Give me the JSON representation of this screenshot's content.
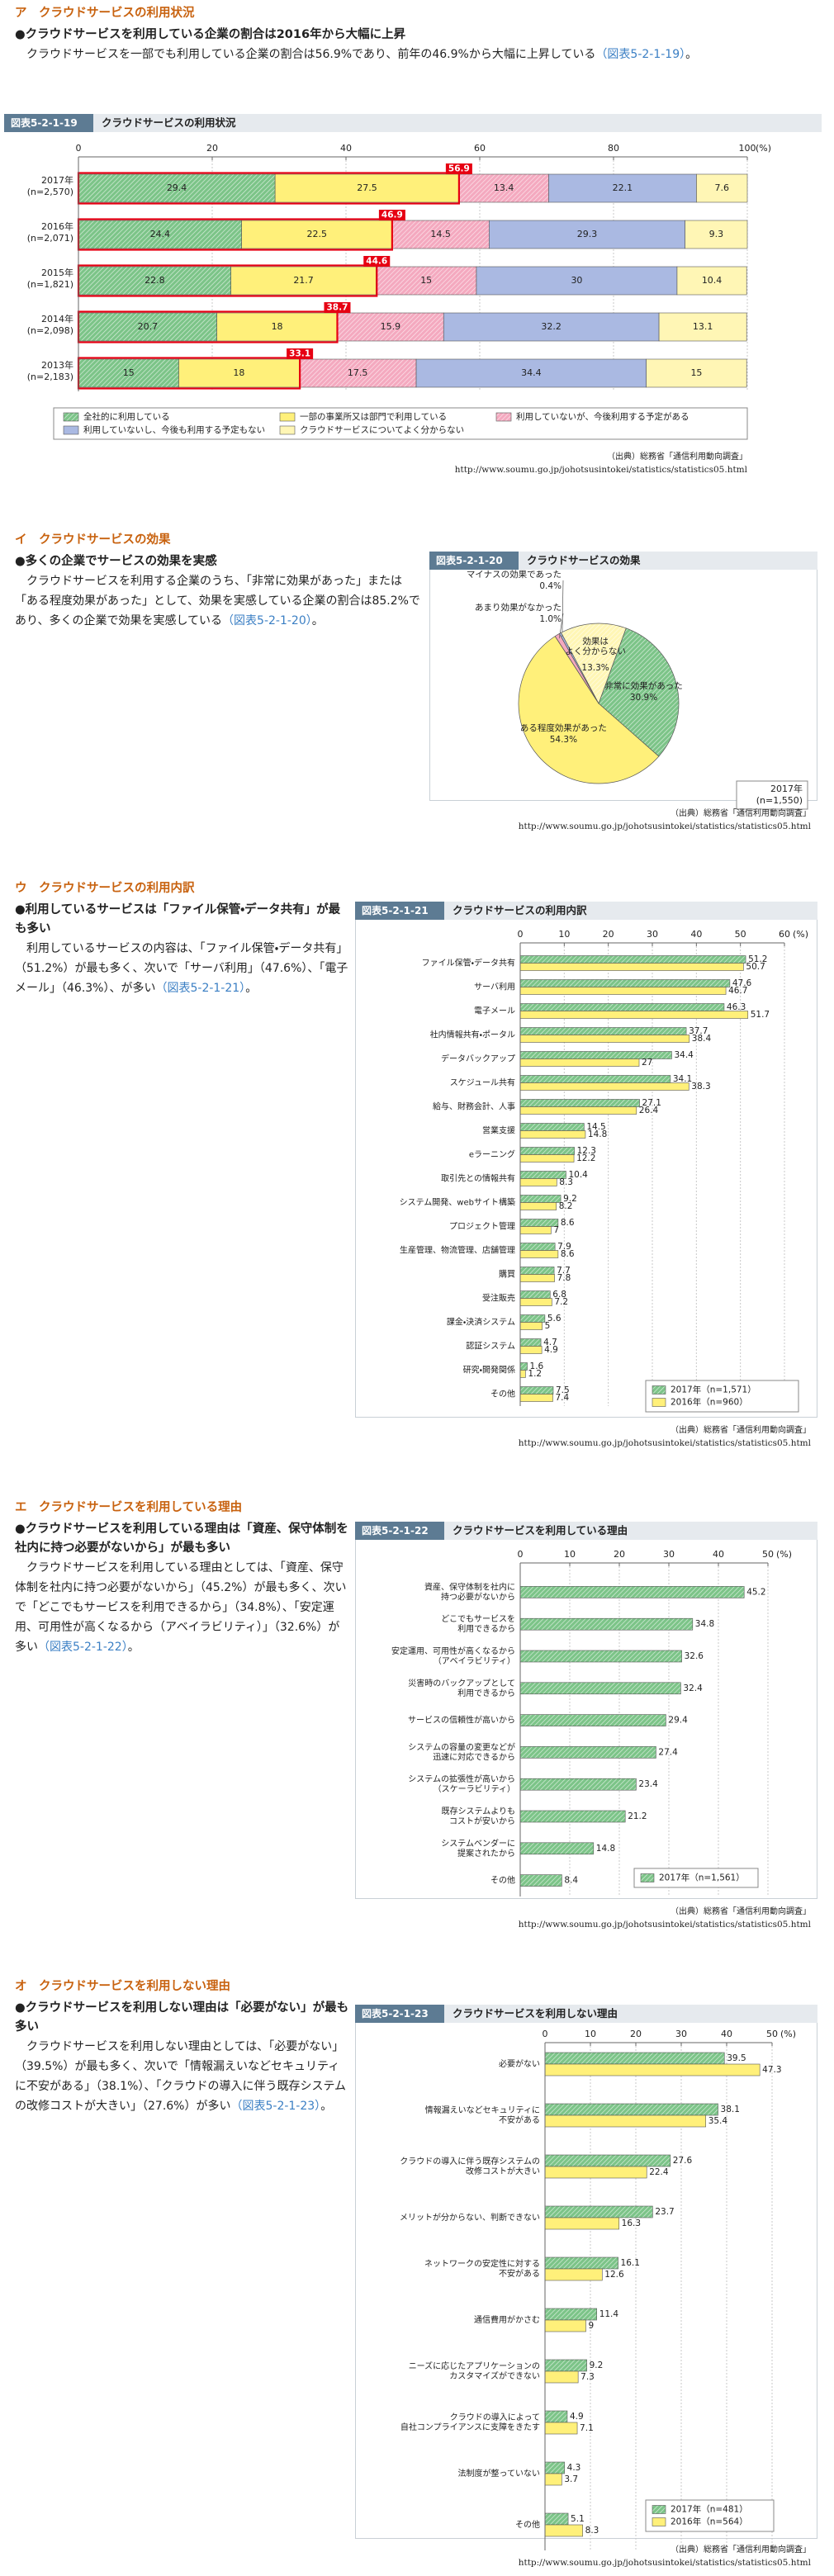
{
  "sections": [
    {
      "heading": "ア　クラウドサービスの利用状況",
      "bullet": "●クラウドサービスを利用している企業の割合は2016年から大幅に上昇",
      "body": [
        "クラウドサービスを一部でも利用している企業の割合は56.9%であり、前年の46.9%から大幅に上昇している",
        "（図表5-2-1-19）",
        "。"
      ]
    },
    {
      "heading": "イ　クラウドサービスの効果",
      "bullet": "●多くの企業でサービスの効果を実感",
      "body": [
        "クラウドサービスを利用する企業のうち、「非常に効果があった」または「ある程度効果があった」として、効果を実感している企業の割合は85.2%であり、多くの企業で効果を実感している",
        "（図表5-2-1-20）",
        "。"
      ]
    },
    {
      "heading": "ウ　クラウドサービスの利用内訳",
      "bullet": "●利用しているサービスは「ファイル保管・データ共有」が最も多い",
      "body": [
        "利用しているサービスの内容は、「ファイル保管・データ共有」（51.2%）が最も多く、次いで「サーバ利用」（47.6%）、「電子メール」（46.3%）、が多い",
        "（図表5-2-1-21）",
        "。"
      ]
    },
    {
      "heading": "エ　クラウドサービスを利用している理由",
      "bullet": "●クラウドサービスを利用している理由は「資産、保守体制を社内に持つ必要がないから」が最も多い",
      "body": [
        "クラウドサービスを利用している理由としては、「資産、保守体制を社内に持つ必要がないから」（45.2%）が最も多く、次いで「どこでもサービスを利用できるから」（34.8%）、「安定運用、可用性が高くなるから（アベイラビリティ）」（32.6%）が多い",
        "（図表5-2-1-22）",
        "。"
      ]
    },
    {
      "heading": "オ　クラウドサービスを利用しない理由",
      "bullet": "●クラウドサービスを利用しない理由は「必要がない」が最も多い",
      "body": [
        "クラウドサービスを利用しない理由としては、「必要がない」（39.5%）が最も多く、次いで「情報漏えいなどセキュリティに不安がある」（38.1%）、「クラウドの導入に伴う既存システムの改修コストが大きい」（27.6%）が多い",
        "（図表5-2-1-23）",
        "。"
      ]
    }
  ],
  "chart_data": [
    {
      "type": "stacked_bar",
      "label": "図表5-2-1-19",
      "title": "クラウドサービスの利用状況",
      "categories": [
        "2017年",
        "2016年",
        "2015年",
        "2014年",
        "2013年"
      ],
      "category_notes": [
        "(n=2,570)",
        "(n=2,071)",
        "(n=1,821)",
        "(n=2,098)",
        "(n=2,183)"
      ],
      "series": [
        {
          "name": "全社的に利用している",
          "color": "#7cc488",
          "hatch": true,
          "values": [
            29.4,
            24.4,
            22.8,
            20.7,
            15.0
          ]
        },
        {
          "name": "一部の事業所又は部門で利用している",
          "color": "#fff07a",
          "values": [
            27.5,
            22.5,
            21.7,
            18.0,
            18.0
          ]
        },
        {
          "name": "利用していないが、今後利用する予定がある",
          "color": "#f4a9bf",
          "hatch": true,
          "values": [
            13.4,
            14.5,
            15.0,
            15.9,
            17.5
          ]
        },
        {
          "name": "利用していないし、今後も利用する予定もない",
          "color": "#aab9e2",
          "values": [
            22.1,
            29.3,
            30.0,
            32.2,
            34.4
          ]
        },
        {
          "name": "クラウドサービスについてよく分からない",
          "color": "#fff6b5",
          "values": [
            7.6,
            9.3,
            10.4,
            13.1,
            15.0
          ]
        }
      ],
      "highlight_values": [
        56.9,
        46.9,
        44.6,
        38.7,
        33.1
      ],
      "highlight_color": "#e60012",
      "xlim": [
        0,
        100
      ],
      "xticks": [
        0,
        20,
        40,
        60,
        80,
        100
      ],
      "x_unit": "(%)",
      "source": "（出典）総務省「通信利用動向調査」",
      "url": "http://www.soumu.go.jp/johotsusintokei/statistics/statistics05.html"
    },
    {
      "type": "pie",
      "label": "図表5-2-1-20",
      "title": "クラウドサービスの効果",
      "categories": [
        "非常に効果があった",
        "ある程度効果があった",
        "あまり効果がなかった",
        "マイナスの効果であった",
        "効果は\nよく分からない"
      ],
      "values": [
        30.9,
        54.3,
        1.0,
        0.4,
        13.3
      ],
      "value_labels": [
        "30.9%",
        "54.3%",
        "1.0%",
        "0.4%",
        "13.3%"
      ],
      "colors": [
        "#7cc488",
        "#fff07a",
        "#f4a9bf",
        "#aab9e2",
        "#fff6b5"
      ],
      "hatch": [
        true,
        false,
        false,
        false,
        true
      ],
      "note": "2017年\n(n=1,550)",
      "source": "（出典）総務省「通信利用動向調査」",
      "url": "http://www.soumu.go.jp/johotsusintokei/statistics/statistics05.html"
    },
    {
      "type": "bar",
      "label": "図表5-2-1-21",
      "title": "クラウドサービスの利用内訳",
      "categories": [
        "ファイル保管・データ共有",
        "サーバ利用",
        "電子メール",
        "社内情報共有・ポータル",
        "データバックアップ",
        "スケジュール共有",
        "給与、財務会計、人事",
        "営業支援",
        "eラーニング",
        "取引先との情報共有",
        "システム開発、webサイト構築",
        "プロジェクト管理",
        "生産管理、物流管理、店舗管理",
        "購買",
        "受注販売",
        "課金・決済システム",
        "認証システム",
        "研究・開発関係",
        "その他"
      ],
      "series": [
        {
          "name": "2017年（n=1,571）",
          "color": "#7cc488",
          "hatch": true,
          "values": [
            51.2,
            47.6,
            46.3,
            37.7,
            34.4,
            34.1,
            27.1,
            14.5,
            12.3,
            10.4,
            9.2,
            8.6,
            7.9,
            7.7,
            6.8,
            5.6,
            4.7,
            1.6,
            7.5
          ]
        },
        {
          "name": "2016年（n=960）",
          "color": "#fff07a",
          "values": [
            50.7,
            46.7,
            51.7,
            38.4,
            27.0,
            38.3,
            26.4,
            14.8,
            12.2,
            8.3,
            8.2,
            7.0,
            8.6,
            7.8,
            7.2,
            5.0,
            4.9,
            1.2,
            7.4
          ]
        }
      ],
      "xlim": [
        0,
        60
      ],
      "xticks": [
        0,
        10,
        20,
        30,
        40,
        50,
        60
      ],
      "x_unit": "(%)",
      "source": "（出典）総務省「通信利用動向調査」",
      "url": "http://www.soumu.go.jp/johotsusintokei/statistics/statistics05.html"
    },
    {
      "type": "bar",
      "label": "図表5-2-1-22",
      "title": "クラウドサービスを利用している理由",
      "categories": [
        "資産、保守体制を社内に\n持つ必要がないから",
        "どこでもサービスを\n利用できるから",
        "安定運用、可用性が高くなるから\n（アベイラビリティ）",
        "災害時のバックアップとして\n利用できるから",
        "サービスの信頼性が高いから",
        "システムの容量の変更などが\n迅速に対応できるから",
        "システムの拡張性が高いから\n（スケーラビリティ）",
        "既存システムよりも\nコストが安いから",
        "システムベンダーに\n提案されたから",
        "その他"
      ],
      "series": [
        {
          "name": "2017年（n=1,561）",
          "color": "#7cc488",
          "hatch": true,
          "values": [
            45.2,
            34.8,
            32.6,
            32.4,
            29.4,
            27.4,
            23.4,
            21.2,
            14.8,
            8.4
          ]
        }
      ],
      "xlim": [
        0,
        50
      ],
      "xticks": [
        0,
        10,
        20,
        30,
        40,
        50
      ],
      "x_unit": "(%)",
      "source": "（出典）総務省「通信利用動向調査」",
      "url": "http://www.soumu.go.jp/johotsusintokei/statistics/statistics05.html"
    },
    {
      "type": "bar",
      "label": "図表5-2-1-23",
      "title": "クラウドサービスを利用しない理由",
      "categories": [
        "必要がない",
        "情報漏えいなどセキュリティに\n不安がある",
        "クラウドの導入に伴う既存システムの\n改修コストが大きい",
        "メリットが分からない、判断できない",
        "ネットワークの安定性に対する\n不安がある",
        "通信費用がかさむ",
        "ニーズに応じたアプリケーションの\nカスタマイズができない",
        "クラウドの導入によって\n自社コンプライアンスに支障をきたす",
        "法制度が整っていない",
        "その他"
      ],
      "series": [
        {
          "name": "2017年（n=481）",
          "color": "#7cc488",
          "hatch": true,
          "values": [
            39.5,
            38.1,
            27.6,
            23.7,
            16.1,
            11.4,
            9.2,
            4.9,
            4.3,
            5.1
          ]
        },
        {
          "name": "2016年（n=564）",
          "color": "#fff07a",
          "values": [
            47.3,
            35.4,
            22.4,
            16.3,
            12.6,
            9.0,
            7.3,
            7.1,
            3.7,
            8.3
          ]
        }
      ],
      "xlim": [
        0,
        50
      ],
      "xticks": [
        0,
        10,
        20,
        30,
        40,
        50
      ],
      "x_unit": "(%)",
      "source": "（出典）総務省「通信利用動向調査」",
      "url": "http://www.soumu.go.jp/johotsusintokei/statistics/statistics05.html"
    }
  ]
}
